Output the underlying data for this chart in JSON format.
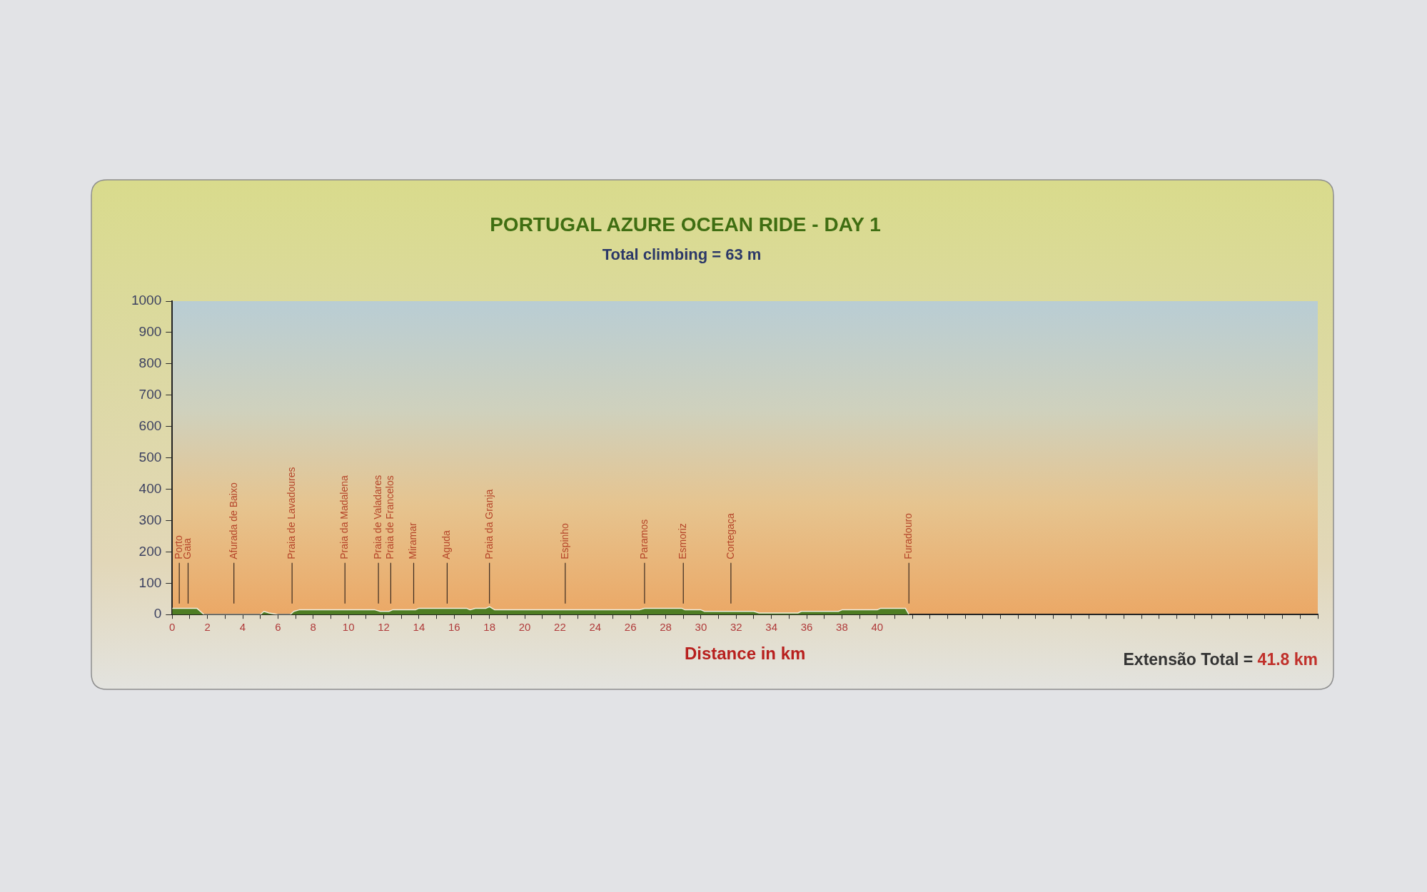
{
  "chart_data": {
    "type": "area",
    "title": "PORTUGAL AZURE OCEAN RIDE - DAY 1",
    "subtitle": "Total climbing = 63 m",
    "xlabel": "Distance in km",
    "x": [
      0,
      1.4,
      1.8,
      5.0,
      5.2,
      5.5,
      6.0,
      6.7,
      6.9,
      7.2,
      11.5,
      11.8,
      12.3,
      12.5,
      13.8,
      14.0,
      16.7,
      16.9,
      17.2,
      17.8,
      18.0,
      18.3,
      25.0,
      25.3,
      26.5,
      26.8,
      28.9,
      29.1,
      30.0,
      30.2,
      33.0,
      33.3,
      35.5,
      35.7,
      37.8,
      38.0,
      40.0,
      40.2,
      41.6,
      41.8
    ],
    "values": [
      20,
      20,
      0,
      0,
      10,
      5,
      0,
      0,
      10,
      15,
      15,
      10,
      10,
      15,
      15,
      20,
      20,
      15,
      20,
      20,
      25,
      15,
      15,
      15,
      15,
      20,
      20,
      15,
      15,
      10,
      10,
      5,
      5,
      10,
      10,
      15,
      15,
      20,
      20,
      0
    ],
    "color": "#4e7d23",
    "xlim": [
      0,
      65
    ],
    "ylim": [
      0,
      1000
    ],
    "xticks": [
      0,
      {
        "value": 1,
        "label": null
      },
      2,
      {
        "value": 3,
        "label": null
      },
      4,
      {
        "value": 5,
        "label": null
      },
      6,
      {
        "value": 7,
        "label": null
      },
      8,
      {
        "value": 9,
        "label": null
      },
      10,
      {
        "value": 11,
        "label": null
      },
      12,
      {
        "value": 13,
        "label": null
      },
      14,
      {
        "value": 15,
        "label": null
      },
      16,
      {
        "value": 17,
        "label": null
      },
      18,
      {
        "value": 19,
        "label": null
      },
      20,
      {
        "value": 21,
        "label": null
      },
      22,
      {
        "value": 23,
        "label": null
      },
      24,
      {
        "value": 25,
        "label": null
      },
      26,
      {
        "value": 27,
        "label": null
      },
      28,
      {
        "value": 29,
        "label": null
      },
      30,
      {
        "value": 31,
        "label": null
      },
      32,
      {
        "value": 33,
        "label": null
      },
      34,
      {
        "value": 35,
        "label": null
      },
      36,
      {
        "value": 37,
        "label": null
      },
      38,
      {
        "value": 39,
        "label": null
      },
      40,
      {
        "value": 41,
        "label": null
      },
      {
        "value": 42,
        "label": null
      },
      {
        "value": 43,
        "label": null
      },
      {
        "value": 44,
        "label": null
      },
      {
        "value": 45,
        "label": null
      },
      {
        "value": 46,
        "label": null
      },
      {
        "value": 47,
        "label": null
      },
      {
        "value": 48,
        "label": null
      },
      {
        "value": 49,
        "label": null
      },
      {
        "value": 50,
        "label": null
      },
      {
        "value": 51,
        "label": null
      },
      {
        "value": 52,
        "label": null
      },
      {
        "value": 53,
        "label": null
      },
      {
        "value": 54,
        "label": null
      },
      {
        "value": 55,
        "label": null
      },
      {
        "value": 56,
        "label": null
      },
      {
        "value": 57,
        "label": null
      },
      {
        "value": 58,
        "label": null
      },
      {
        "value": 59,
        "label": null
      },
      {
        "value": 60,
        "label": null
      },
      {
        "value": 61,
        "label": null
      },
      {
        "value": 62,
        "label": null
      },
      {
        "value": 63,
        "label": null
      },
      {
        "value": 64,
        "label": null
      },
      {
        "value": 65,
        "label": null
      }
    ],
    "yticks": [
      0,
      100,
      200,
      300,
      400,
      500,
      600,
      700,
      800,
      900,
      1000
    ],
    "ref_lines": [
      {
        "axis": "x",
        "value": 0.4,
        "label": "Porto"
      },
      {
        "axis": "x",
        "value": 0.9,
        "label": "Gaia"
      },
      {
        "axis": "x",
        "value": 3.5,
        "label": "Afurada de Baixo"
      },
      {
        "axis": "x",
        "value": 6.8,
        "label": "Praia de Lavadoures"
      },
      {
        "axis": "x",
        "value": 9.8,
        "label": "Praia da Madalena"
      },
      {
        "axis": "x",
        "value": 11.7,
        "label": "Praia de Valadares"
      },
      {
        "axis": "x",
        "value": 12.4,
        "label": "Praia de Francelos"
      },
      {
        "axis": "x",
        "value": 13.7,
        "label": "Miramar"
      },
      {
        "axis": "x",
        "value": 15.6,
        "label": "Aguda"
      },
      {
        "axis": "x",
        "value": 18.0,
        "label": "Praia da Granja"
      },
      {
        "axis": "x",
        "value": 22.3,
        "label": "Espinho"
      },
      {
        "axis": "x",
        "value": 26.8,
        "label": "Paramos"
      },
      {
        "axis": "x",
        "value": 29.0,
        "label": "Esmoriz"
      },
      {
        "axis": "x",
        "value": 31.7,
        "label": "Cortegaça"
      },
      {
        "axis": "x",
        "value": 41.8,
        "label": "Furadouro"
      }
    ],
    "annotations": [
      "Extensão Total = 41.8 km"
    ]
  }
}
